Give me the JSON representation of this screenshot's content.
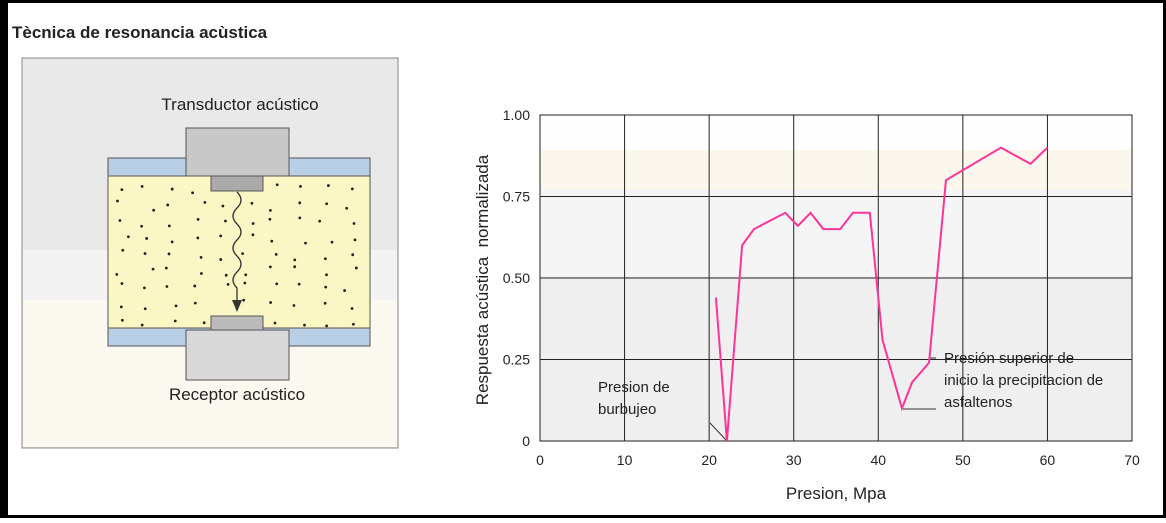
{
  "title": "Tècnica de resonancia acùstica",
  "diagram": {
    "labels": [
      "Transductor acústico",
      "Receptor acústico"
    ]
  },
  "chart_data": {
    "type": "line",
    "xlabel": "Presion, Mpa",
    "ylabel": "Respuesta acústica  normalizada",
    "x": [
      20.8,
      22.1,
      23.9,
      25.3,
      29,
      30.5,
      32,
      33.5,
      35.5,
      37,
      39,
      40.5,
      42.8,
      44,
      46,
      48,
      54.5,
      58,
      60
    ],
    "values": [
      0.44,
      0,
      0.6,
      0.65,
      0.7,
      0.66,
      0.7,
      0.65,
      0.65,
      0.7,
      0.7,
      0.31,
      0.1,
      0.18,
      0.24,
      0.8,
      0.9,
      0.85,
      0.9
    ],
    "color": "#ff3399",
    "xlim": [
      0,
      70
    ],
    "xticks": [
      0,
      10,
      20,
      30,
      40,
      50,
      60,
      70
    ],
    "ylim": [
      0,
      1
    ],
    "yticks": [
      0,
      {
        "value": 0.25,
        "label": "0.25"
      },
      {
        "value": 0.5,
        "label": "0.50"
      },
      {
        "value": 0.75,
        "label": "0.75"
      },
      {
        "value": 1,
        "label": "1.00"
      }
    ],
    "grid": true,
    "annotations": [
      [
        "Presion de",
        "burbujeo"
      ],
      [
        "Presión superior de",
        "inicio la precipitacion de",
        "asfaltenos"
      ]
    ]
  }
}
